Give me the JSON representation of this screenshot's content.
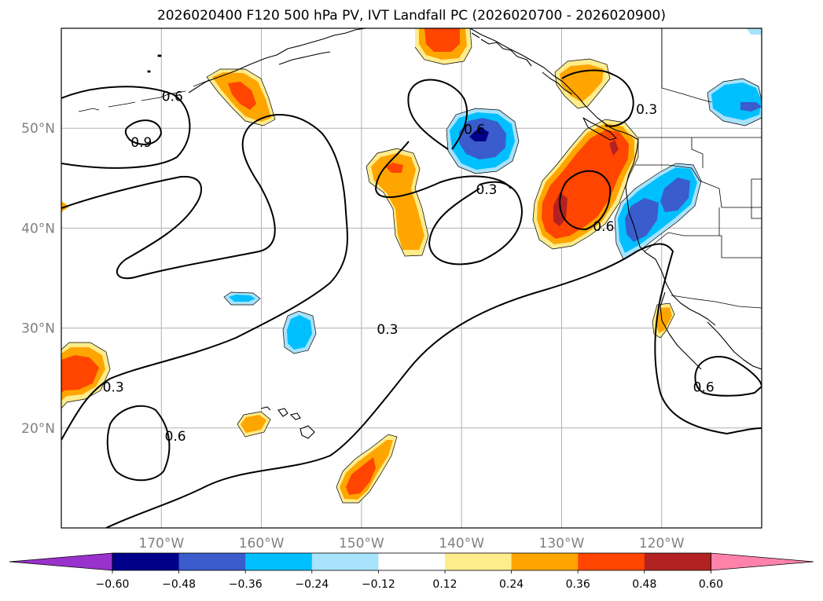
{
  "title": "2026020400 F120 500 hPa PV, IVT Landfall PC (2026020700 - 2026020900)",
  "map": {
    "lon_range": [
      -180,
      -110
    ],
    "lat_range": [
      10,
      60
    ],
    "lon_ticks": [
      {
        "value": -170,
        "label": "170°W"
      },
      {
        "value": -160,
        "label": "160°W"
      },
      {
        "value": -150,
        "label": "150°W"
      },
      {
        "value": -140,
        "label": "140°W"
      },
      {
        "value": -130,
        "label": "130°W"
      },
      {
        "value": -120,
        "label": "120°W"
      }
    ],
    "lat_ticks": [
      {
        "value": 20,
        "label": "20°N"
      },
      {
        "value": 30,
        "label": "30°N"
      },
      {
        "value": 40,
        "label": "40°N"
      },
      {
        "value": 50,
        "label": "50°N"
      }
    ],
    "gridlines": true
  },
  "contour_labels": [
    {
      "text": "0.6",
      "lon": -168.9,
      "lat": 53.2
    },
    {
      "text": "0.9",
      "lon": -172,
      "lat": 48.6
    },
    {
      "text": "0.6",
      "lon": -138.7,
      "lat": 49.9
    },
    {
      "text": "0.3",
      "lon": -137.5,
      "lat": 43.9
    },
    {
      "text": "0.3",
      "lon": -121.5,
      "lat": 51.9
    },
    {
      "text": "0.6",
      "lon": -125.8,
      "lat": 40.2
    },
    {
      "text": "0.3",
      "lon": -147.4,
      "lat": 29.9
    },
    {
      "text": "0.3",
      "lon": -174.8,
      "lat": 24.1
    },
    {
      "text": "0.6",
      "lon": -168.6,
      "lat": 19.2
    },
    {
      "text": "0.6",
      "lon": -115.8,
      "lat": 24.1
    }
  ],
  "colorbar": {
    "ticks": [
      "−0.60",
      "−0.48",
      "−0.36",
      "−0.24",
      "−0.12",
      "0.12",
      "0.24",
      "0.36",
      "0.48",
      "0.60"
    ],
    "colors": [
      "#9932cc",
      "#00008b",
      "#3a5ccc",
      "#00bfff",
      "#a8e2fb",
      "#ffffff",
      "#ffec8b",
      "#ffa500",
      "#ff4500",
      "#b22222",
      "#ff82ab"
    ]
  }
}
